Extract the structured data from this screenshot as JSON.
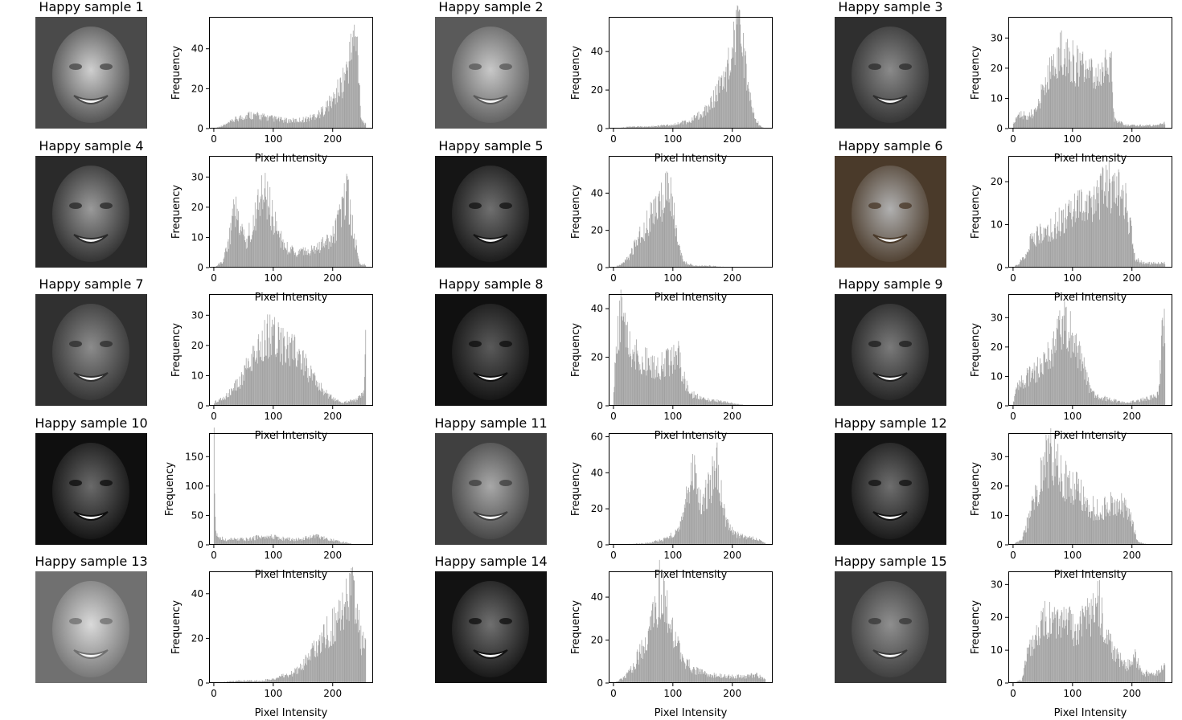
{
  "chart_data": {
    "type": "bar",
    "figure": "grid of face images with pixel intensity histograms",
    "xlabel": "Pixel Intensity",
    "ylabel": "Frequency",
    "xlim": [
      -8,
      268
    ],
    "xticks": [
      0,
      100,
      200
    ],
    "bar_color": "#a0a0a0",
    "panels": [
      {
        "title": "Happy sample 1",
        "ylim": [
          0,
          56
        ],
        "yticks": [
          0,
          20,
          40
        ],
        "face_tone": "#cfcfcf",
        "face_dark": "#4a4a4a",
        "histogram": [
          [
            0,
            0
          ],
          [
            20,
            2
          ],
          [
            40,
            5
          ],
          [
            60,
            7
          ],
          [
            80,
            6
          ],
          [
            100,
            5
          ],
          [
            120,
            4
          ],
          [
            140,
            4
          ],
          [
            160,
            5
          ],
          [
            180,
            8
          ],
          [
            200,
            14
          ],
          [
            215,
            22
          ],
          [
            225,
            30
          ],
          [
            235,
            45
          ],
          [
            242,
            40
          ],
          [
            248,
            5
          ],
          [
            255,
            2
          ]
        ]
      },
      {
        "title": "Happy sample 2",
        "ylim": [
          0,
          58
        ],
        "yticks": [
          0,
          20,
          40
        ],
        "face_tone": "#c8c8c8",
        "face_dark": "#5a5a5a",
        "histogram": [
          [
            0,
            0
          ],
          [
            30,
            1
          ],
          [
            60,
            1
          ],
          [
            100,
            2
          ],
          [
            130,
            4
          ],
          [
            150,
            8
          ],
          [
            165,
            14
          ],
          [
            180,
            22
          ],
          [
            190,
            28
          ],
          [
            200,
            40
          ],
          [
            208,
            50
          ],
          [
            215,
            45
          ],
          [
            225,
            25
          ],
          [
            235,
            8
          ],
          [
            245,
            2
          ],
          [
            255,
            0
          ]
        ]
      },
      {
        "title": "Happy sample 3",
        "ylim": [
          0,
          37
        ],
        "yticks": [
          0,
          10,
          20,
          30
        ],
        "face_tone": "#8a8a8a",
        "face_dark": "#2f2f2f",
        "histogram": [
          [
            0,
            1
          ],
          [
            10,
            5
          ],
          [
            25,
            4
          ],
          [
            40,
            6
          ],
          [
            55,
            16
          ],
          [
            70,
            22
          ],
          [
            85,
            27
          ],
          [
            100,
            22
          ],
          [
            115,
            20
          ],
          [
            130,
            18
          ],
          [
            145,
            16
          ],
          [
            155,
            20
          ],
          [
            165,
            22
          ],
          [
            170,
            3
          ],
          [
            190,
            1
          ],
          [
            210,
            1
          ],
          [
            240,
            1
          ],
          [
            260,
            2
          ]
        ]
      },
      {
        "title": "Happy sample 4",
        "ylim": [
          0,
          37
        ],
        "yticks": [
          0,
          10,
          20,
          30
        ],
        "face_tone": "#9a9a9a",
        "face_dark": "#2a2a2a",
        "histogram": [
          [
            0,
            0
          ],
          [
            15,
            2
          ],
          [
            25,
            8
          ],
          [
            35,
            20
          ],
          [
            45,
            15
          ],
          [
            55,
            8
          ],
          [
            70,
            18
          ],
          [
            85,
            25
          ],
          [
            95,
            20
          ],
          [
            110,
            10
          ],
          [
            125,
            6
          ],
          [
            140,
            5
          ],
          [
            160,
            5
          ],
          [
            180,
            7
          ],
          [
            200,
            10
          ],
          [
            215,
            18
          ],
          [
            225,
            24
          ],
          [
            235,
            12
          ],
          [
            245,
            1
          ]
        ]
      },
      {
        "title": "Happy sample 5",
        "ylim": [
          0,
          60
        ],
        "yticks": [
          0,
          20,
          40
        ],
        "face_tone": "#6f6f6f",
        "face_dark": "#151515",
        "histogram": [
          [
            0,
            0
          ],
          [
            15,
            2
          ],
          [
            25,
            5
          ],
          [
            35,
            12
          ],
          [
            45,
            18
          ],
          [
            55,
            22
          ],
          [
            65,
            28
          ],
          [
            75,
            32
          ],
          [
            85,
            40
          ],
          [
            92,
            52
          ],
          [
            100,
            35
          ],
          [
            108,
            12
          ],
          [
            118,
            3
          ],
          [
            135,
            1
          ],
          [
            160,
            1
          ],
          [
            200,
            0
          ]
        ]
      },
      {
        "title": "Happy sample 6",
        "ylim": [
          0,
          26
        ],
        "yticks": [
          0,
          10,
          20
        ],
        "face_tone": "#b0b0b0",
        "face_dark": "#4a3a2a",
        "histogram": [
          [
            0,
            0
          ],
          [
            10,
            1
          ],
          [
            20,
            3
          ],
          [
            30,
            6
          ],
          [
            45,
            8
          ],
          [
            60,
            9
          ],
          [
            80,
            11
          ],
          [
            100,
            13
          ],
          [
            120,
            15
          ],
          [
            140,
            16
          ],
          [
            155,
            18
          ],
          [
            170,
            20
          ],
          [
            185,
            17
          ],
          [
            198,
            10
          ],
          [
            205,
            2
          ],
          [
            220,
            1
          ],
          [
            235,
            1
          ]
        ]
      },
      {
        "title": "Happy sample 7",
        "ylim": [
          0,
          37
        ],
        "yticks": [
          0,
          10,
          20,
          30
        ],
        "face_tone": "#8c8c8c",
        "face_dark": "#303030",
        "histogram": [
          [
            0,
            1
          ],
          [
            20,
            3
          ],
          [
            40,
            7
          ],
          [
            60,
            14
          ],
          [
            75,
            20
          ],
          [
            90,
            24
          ],
          [
            105,
            22
          ],
          [
            120,
            20
          ],
          [
            135,
            18
          ],
          [
            150,
            14
          ],
          [
            165,
            10
          ],
          [
            180,
            6
          ],
          [
            195,
            3
          ],
          [
            215,
            1
          ],
          [
            240,
            2
          ],
          [
            252,
            4
          ],
          [
            258,
            30
          ]
        ]
      },
      {
        "title": "Happy sample 8",
        "ylim": [
          0,
          46
        ],
        "yticks": [
          0,
          20,
          40
        ],
        "face_tone": "#5a5a5a",
        "face_dark": "#101010",
        "histogram": [
          [
            0,
            6
          ],
          [
            6,
            25
          ],
          [
            12,
            38
          ],
          [
            20,
            28
          ],
          [
            35,
            22
          ],
          [
            55,
            18
          ],
          [
            75,
            16
          ],
          [
            95,
            18
          ],
          [
            110,
            20
          ],
          [
            120,
            10
          ],
          [
            130,
            5
          ],
          [
            150,
            3
          ],
          [
            175,
            2
          ],
          [
            200,
            1
          ],
          [
            230,
            0
          ]
        ]
      },
      {
        "title": "Happy sample 9",
        "ylim": [
          0,
          38
        ],
        "yticks": [
          0,
          10,
          20,
          30
        ],
        "face_tone": "#7a7a7a",
        "face_dark": "#202020",
        "histogram": [
          [
            0,
            1
          ],
          [
            10,
            8
          ],
          [
            25,
            10
          ],
          [
            40,
            12
          ],
          [
            55,
            15
          ],
          [
            70,
            20
          ],
          [
            85,
            28
          ],
          [
            95,
            25
          ],
          [
            110,
            18
          ],
          [
            120,
            12
          ],
          [
            130,
            5
          ],
          [
            145,
            3
          ],
          [
            165,
            2
          ],
          [
            190,
            1
          ],
          [
            215,
            2
          ],
          [
            235,
            3
          ],
          [
            245,
            4
          ],
          [
            252,
            28
          ]
        ]
      },
      {
        "title": "Happy sample 10",
        "ylim": [
          0,
          190
        ],
        "yticks": [
          0,
          50,
          100,
          150
        ],
        "face_tone": "#6a6a6a",
        "face_dark": "#0f0f0f",
        "histogram": [
          [
            0,
            180
          ],
          [
            3,
            25
          ],
          [
            8,
            12
          ],
          [
            20,
            9
          ],
          [
            40,
            9
          ],
          [
            60,
            10
          ],
          [
            80,
            14
          ],
          [
            100,
            13
          ],
          [
            120,
            10
          ],
          [
            140,
            9
          ],
          [
            160,
            12
          ],
          [
            175,
            14
          ],
          [
            190,
            10
          ],
          [
            205,
            7
          ],
          [
            220,
            4
          ],
          [
            235,
            1
          ]
        ]
      },
      {
        "title": "Happy sample 11",
        "ylim": [
          0,
          62
        ],
        "yticks": [
          0,
          20,
          40,
          60
        ],
        "face_tone": "#a8a8a8",
        "face_dark": "#404040",
        "histogram": [
          [
            0,
            0
          ],
          [
            60,
            1
          ],
          [
            85,
            3
          ],
          [
            100,
            6
          ],
          [
            115,
            12
          ],
          [
            125,
            28
          ],
          [
            135,
            40
          ],
          [
            145,
            22
          ],
          [
            155,
            28
          ],
          [
            165,
            35
          ],
          [
            172,
            50
          ],
          [
            180,
            30
          ],
          [
            190,
            12
          ],
          [
            205,
            6
          ],
          [
            225,
            4
          ],
          [
            245,
            3
          ],
          [
            255,
            1
          ]
        ]
      },
      {
        "title": "Happy sample 12",
        "ylim": [
          0,
          38
        ],
        "yticks": [
          0,
          10,
          20,
          30
        ],
        "face_tone": "#6e6e6e",
        "face_dark": "#141414",
        "histogram": [
          [
            0,
            0
          ],
          [
            15,
            2
          ],
          [
            25,
            8
          ],
          [
            35,
            14
          ],
          [
            45,
            22
          ],
          [
            55,
            28
          ],
          [
            65,
            30
          ],
          [
            75,
            26
          ],
          [
            90,
            22
          ],
          [
            110,
            18
          ],
          [
            130,
            13
          ],
          [
            150,
            12
          ],
          [
            170,
            14
          ],
          [
            185,
            13
          ],
          [
            200,
            8
          ],
          [
            210,
            1
          ],
          [
            230,
            0
          ]
        ]
      },
      {
        "title": "Happy sample 13",
        "ylim": [
          0,
          50
        ],
        "yticks": [
          0,
          20,
          40
        ],
        "face_tone": "#dadada",
        "face_dark": "#707070",
        "histogram": [
          [
            0,
            0
          ],
          [
            40,
            1
          ],
          [
            80,
            1
          ],
          [
            100,
            2
          ],
          [
            130,
            4
          ],
          [
            150,
            8
          ],
          [
            165,
            14
          ],
          [
            180,
            20
          ],
          [
            195,
            24
          ],
          [
            210,
            28
          ],
          [
            222,
            35
          ],
          [
            232,
            40
          ],
          [
            242,
            30
          ],
          [
            250,
            15
          ],
          [
            256,
            25
          ],
          [
            260,
            0
          ]
        ]
      },
      {
        "title": "Happy sample 14",
        "ylim": [
          0,
          52
        ],
        "yticks": [
          0,
          20,
          40
        ],
        "face_tone": "#707070",
        "face_dark": "#121212",
        "histogram": [
          [
            0,
            0
          ],
          [
            15,
            2
          ],
          [
            30,
            6
          ],
          [
            45,
            14
          ],
          [
            60,
            24
          ],
          [
            70,
            35
          ],
          [
            78,
            44
          ],
          [
            88,
            36
          ],
          [
            100,
            22
          ],
          [
            115,
            12
          ],
          [
            135,
            6
          ],
          [
            160,
            4
          ],
          [
            190,
            3
          ],
          [
            220,
            3
          ],
          [
            240,
            4
          ],
          [
            252,
            2
          ]
        ]
      },
      {
        "title": "Happy sample 15",
        "ylim": [
          0,
          34
        ],
        "yticks": [
          0,
          10,
          20,
          30
        ],
        "face_tone": "#8f8f8f",
        "face_dark": "#3a3a3a",
        "histogram": [
          [
            0,
            0
          ],
          [
            15,
            1
          ],
          [
            25,
            10
          ],
          [
            40,
            16
          ],
          [
            55,
            20
          ],
          [
            70,
            18
          ],
          [
            85,
            18
          ],
          [
            100,
            17
          ],
          [
            115,
            18
          ],
          [
            130,
            20
          ],
          [
            145,
            24
          ],
          [
            155,
            16
          ],
          [
            170,
            9
          ],
          [
            190,
            5
          ],
          [
            205,
            8
          ],
          [
            220,
            3
          ],
          [
            240,
            3
          ],
          [
            258,
            5
          ]
        ]
      }
    ]
  }
}
